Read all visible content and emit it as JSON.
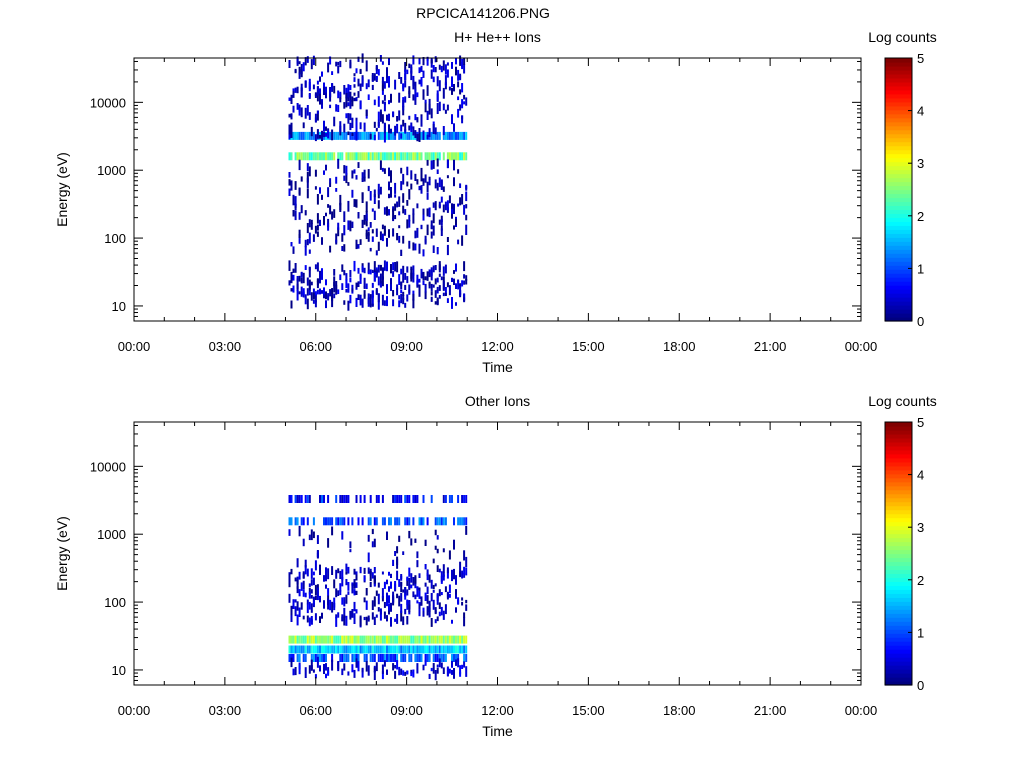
{
  "figure_title": "RPCICA141206.PNG",
  "chart_data": [
    {
      "type": "heatmap",
      "title": "H+ He++ Ions",
      "xlabel": "Time",
      "ylabel": "Energy (eV)",
      "x_tick_labels": [
        "00:00",
        "03:00",
        "06:00",
        "09:00",
        "12:00",
        "15:00",
        "18:00",
        "21:00",
        "00:00"
      ],
      "x_range_hours": [
        0,
        24
      ],
      "y_scale": "log",
      "y_tick_labels": [
        "10",
        "100",
        "1000",
        "10000"
      ],
      "y_range_ev": [
        6,
        45000
      ],
      "colorbar": {
        "label": "Log counts",
        "ticks": [
          "0",
          "1",
          "2",
          "3",
          "4",
          "5"
        ],
        "range": [
          0,
          5
        ],
        "colormap": "jet"
      },
      "data_window_hours": [
        5.1,
        11.0
      ],
      "components": [
        {
          "kind": "band",
          "energy_ev": 3200,
          "mean_log_counts": 1.3,
          "coverage": 0.9
        },
        {
          "kind": "band",
          "energy_ev": 1600,
          "mean_log_counts": 2.4,
          "coverage": 0.95
        },
        {
          "kind": "scatter",
          "energy_range_ev": [
            3000,
            45000
          ],
          "mean_log_counts": 0.3,
          "coverage": 0.22
        },
        {
          "kind": "scatter",
          "energy_range_ev": [
            60,
            1300
          ],
          "mean_log_counts": 0.2,
          "coverage": 0.15
        },
        {
          "kind": "scatter",
          "energy_range_ev": [
            10,
            40
          ],
          "mean_log_counts": 0.3,
          "coverage": 0.35
        }
      ]
    },
    {
      "type": "heatmap",
      "title": "Other Ions",
      "xlabel": "Time",
      "ylabel": "Energy (eV)",
      "x_tick_labels": [
        "00:00",
        "03:00",
        "06:00",
        "09:00",
        "12:00",
        "15:00",
        "18:00",
        "21:00",
        "00:00"
      ],
      "x_range_hours": [
        0,
        24
      ],
      "y_scale": "log",
      "y_tick_labels": [
        "10",
        "100",
        "1000",
        "10000"
      ],
      "y_range_ev": [
        6,
        45000
      ],
      "colorbar": {
        "label": "Log counts",
        "ticks": [
          "0",
          "1",
          "2",
          "3",
          "4",
          "5"
        ],
        "range": [
          0,
          5
        ],
        "colormap": "jet"
      },
      "data_window_hours": [
        5.1,
        11.0
      ],
      "components": [
        {
          "kind": "band",
          "energy_ev": 3300,
          "mean_log_counts": 0.7,
          "coverage": 0.55
        },
        {
          "kind": "band",
          "energy_ev": 1550,
          "mean_log_counts": 1.0,
          "coverage": 0.6
        },
        {
          "kind": "band",
          "energy_ev": 28,
          "mean_log_counts": 2.6,
          "coverage": 1.0
        },
        {
          "kind": "band",
          "energy_ev": 20,
          "mean_log_counts": 1.6,
          "coverage": 1.0
        },
        {
          "kind": "band",
          "energy_ev": 15,
          "mean_log_counts": 1.0,
          "coverage": 0.75
        },
        {
          "kind": "scatter",
          "energy_range_ev": [
            50,
            300
          ],
          "mean_log_counts": 0.3,
          "coverage": 0.3
        },
        {
          "kind": "scatter",
          "energy_range_ev": [
            300,
            1200
          ],
          "mean_log_counts": 0.2,
          "coverage": 0.08
        },
        {
          "kind": "scatter",
          "energy_range_ev": [
            8,
            13
          ],
          "mean_log_counts": 0.4,
          "coverage": 0.3
        }
      ]
    }
  ]
}
